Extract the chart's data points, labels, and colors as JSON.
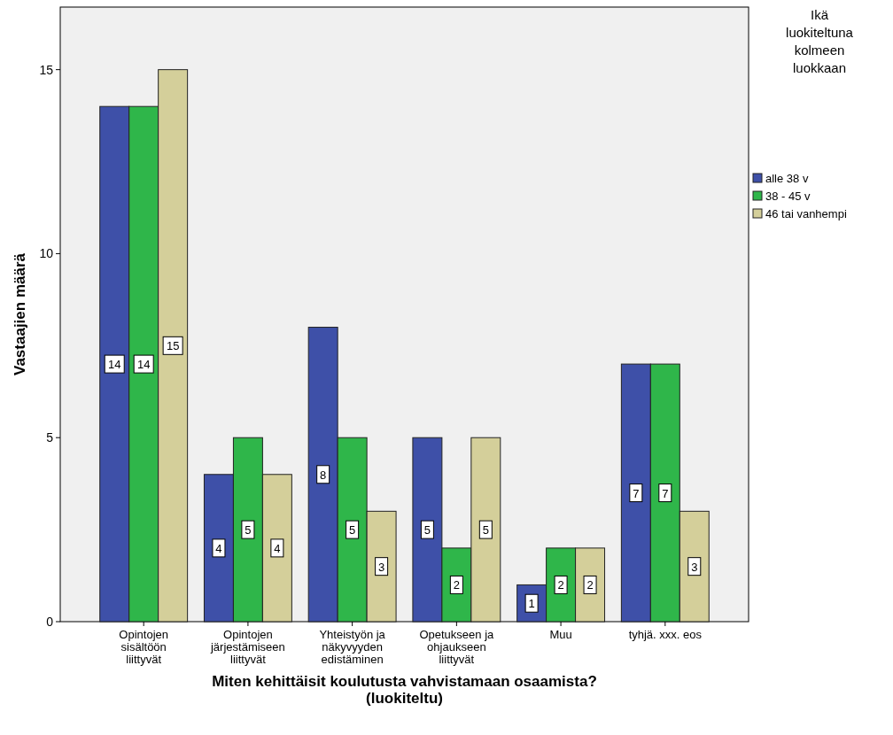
{
  "chart_data": {
    "type": "bar",
    "xlabel": "Miten kehittäisit koulutusta vahvistamaan osaamista?\n(luokiteltu)",
    "ylabel": "Vastaajien määrä",
    "legend_title": "Ikä\nluokiteltuna\nkolmeen\nluokkaan",
    "categories": [
      "Opintojen\nsisältöön\nliittyvät",
      "Opintojen\njärjestämiseen\nliittyvät",
      "Yhteistyön ja\nnäkyvyyden\nedistäminen",
      "Opetukseen ja\nohjaukseen\nliittyvät",
      "Muu",
      "tyhjä. xxx. eos"
    ],
    "series": [
      {
        "name": "alle 38 v",
        "color": "#3e50a8",
        "values": [
          14,
          4,
          8,
          5,
          1,
          7
        ]
      },
      {
        "name": "38 - 45 v",
        "color": "#2fb64a",
        "values": [
          14,
          5,
          5,
          2,
          2,
          7
        ]
      },
      {
        "name": "46 tai vanhempi",
        "color": "#d4cf9a",
        "values": [
          15,
          4,
          3,
          5,
          2,
          3
        ]
      }
    ],
    "ylim": [
      0,
      16.7
    ],
    "yticks": [
      0,
      5,
      10,
      15
    ],
    "grid": false,
    "legend": "right",
    "data_labels": true
  }
}
